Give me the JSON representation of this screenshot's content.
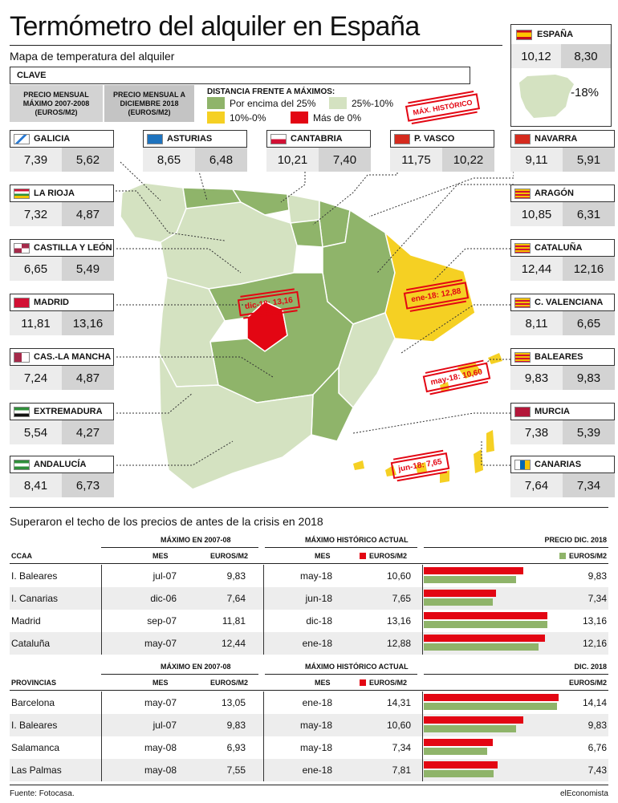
{
  "title": "Termómetro del alquiler en España",
  "subtitle": "Mapa de temperatura del alquiler",
  "key": {
    "clave": "CLAVE",
    "col1": "PRECIO MENSUAL MÁXIMO 2007-2008 (EUROS/M2)",
    "col2": "PRECIO MENSUAL A DICIEMBRE 2018 (EUROS/M2)",
    "legend_title": "DISTANCIA FRENTE A MÁXIMOS:",
    "legend": [
      {
        "label": "Por encima del 25%",
        "color": "#8fb46a"
      },
      {
        "label": "25%-10%",
        "color": "#d4e2c1"
      },
      {
        "label": "10%-0%",
        "color": "#f5d023"
      },
      {
        "label": "Más de 0%",
        "color": "#e30613"
      }
    ],
    "stamp": "MÁX. HISTÓRICO"
  },
  "espana": {
    "name": "ESPAÑA",
    "max": "10,12",
    "dic": "8,30",
    "change": "-18%"
  },
  "regions": [
    {
      "name": "GALICIA",
      "max": "7,39",
      "dic": "5,62",
      "flag": "galicia-flag",
      "color": "#d4e2c1"
    },
    {
      "name": "ASTURIAS",
      "max": "8,65",
      "dic": "6,48",
      "flag": "asturias-flag",
      "color": "#8fb46a"
    },
    {
      "name": "CANTABRIA",
      "max": "10,21",
      "dic": "7,40",
      "flag": "cantabria-flag",
      "color": "#8fb46a"
    },
    {
      "name": "P. VASCO",
      "max": "11,75",
      "dic": "10,22",
      "flag": "pvasco-flag",
      "color": "#d4e2c1"
    },
    {
      "name": "NAVARRA",
      "max": "9,11",
      "dic": "5,91",
      "flag": "navarra-flag",
      "color": "#8fb46a"
    },
    {
      "name": "LA RIOJA",
      "max": "7,32",
      "dic": "4,87",
      "flag": "larioja-flag",
      "color": "#8fb46a"
    },
    {
      "name": "ARAGÓN",
      "max": "10,85",
      "dic": "6,31",
      "flag": "aragon-flag",
      "color": "#8fb46a"
    },
    {
      "name": "CASTILLA Y LEÓN",
      "max": "6,65",
      "dic": "5,49",
      "flag": "castillayleon-flag",
      "color": "#d4e2c1"
    },
    {
      "name": "CATALUÑA",
      "max": "12,44",
      "dic": "12,16",
      "flag": "cataluna-flag",
      "color": "#f5d023"
    },
    {
      "name": "MADRID",
      "max": "11,81",
      "dic": "13,16",
      "flag": "madrid-flag",
      "color": "#e30613"
    },
    {
      "name": "C. VALENCIANA",
      "max": "8,11",
      "dic": "6,65",
      "flag": "cvalenciana-flag",
      "color": "#d4e2c1"
    },
    {
      "name": "CAS.-LA MANCHA",
      "max": "7,24",
      "dic": "4,87",
      "flag": "castillalamancha-flag",
      "color": "#8fb46a"
    },
    {
      "name": "BALEARES",
      "max": "9,83",
      "dic": "9,83",
      "flag": "baleares-flag",
      "color": "#f5d023"
    },
    {
      "name": "EXTREMADURA",
      "max": "5,54",
      "dic": "4,27",
      "flag": "extremadura-flag",
      "color": "#d4e2c1"
    },
    {
      "name": "MURCIA",
      "max": "7,38",
      "dic": "5,39",
      "flag": "murcia-flag",
      "color": "#8fb46a"
    },
    {
      "name": "ANDALUCÍA",
      "max": "8,41",
      "dic": "6,73",
      "flag": "andalucia-flag",
      "color": "#d4e2c1"
    },
    {
      "name": "CANARIAS",
      "max": "7,64",
      "dic": "7,34",
      "flag": "canarias-flag",
      "color": "#f5d023"
    }
  ],
  "stamps": [
    "dic-18: 13,16",
    "ene-18: 12,88",
    "may-18: 10,60",
    "jun-18: 7,65"
  ],
  "section_title": "Superaron el techo de los precios de antes de la crisis en 2018",
  "table1": {
    "group1": "MÁXIMO EN 2007-08",
    "group2": "MÁXIMO HISTÓRICO ACTUAL",
    "group3": "PRECIO DIC. 2018",
    "col_label": "CCAA",
    "mes": "MES",
    "euros": "EUROS/M2",
    "rows": [
      {
        "name": "I. Baleares",
        "mes07": "jul-07",
        "max07": "9,83",
        "mesh": "may-18",
        "maxh": "10,60",
        "dic": "9,83"
      },
      {
        "name": "I. Canarias",
        "mes07": "dic-06",
        "max07": "7,64",
        "mesh": "jun-18",
        "maxh": "7,65",
        "dic": "7,34"
      },
      {
        "name": "Madrid",
        "mes07": "sep-07",
        "max07": "11,81",
        "mesh": "dic-18",
        "maxh": "13,16",
        "dic": "13,16"
      },
      {
        "name": "Cataluña",
        "mes07": "may-07",
        "max07": "12,44",
        "mesh": "ene-18",
        "maxh": "12,88",
        "dic": "12,16"
      }
    ]
  },
  "table2": {
    "group1": "MÁXIMO EN 2007-08",
    "group2": "MÁXIMO HISTÓRICO ACTUAL",
    "group3": "DIC. 2018",
    "col_label": "PROVINCIAS",
    "mes": "MES",
    "euros": "EUROS/M2",
    "rows": [
      {
        "name": "Barcelona",
        "mes07": "may-07",
        "max07": "13,05",
        "mesh": "ene-18",
        "maxh": "14,31",
        "dic": "14,14"
      },
      {
        "name": "I. Baleares",
        "mes07": "jul-07",
        "max07": "9,83",
        "mesh": "may-18",
        "maxh": "10,60",
        "dic": "9,83"
      },
      {
        "name": "Salamanca",
        "mes07": "may-08",
        "max07": "6,93",
        "mesh": "may-18",
        "maxh": "7,34",
        "dic": "6,76"
      },
      {
        "name": "Las Palmas",
        "mes07": "may-08",
        "max07": "7,55",
        "mesh": "ene-18",
        "maxh": "7,81",
        "dic": "7,43"
      }
    ]
  },
  "colors": {
    "red": "#e30613",
    "green": "#8fb46a"
  },
  "source": "Fuente: Fotocasa.",
  "brand": "elEconomista"
}
